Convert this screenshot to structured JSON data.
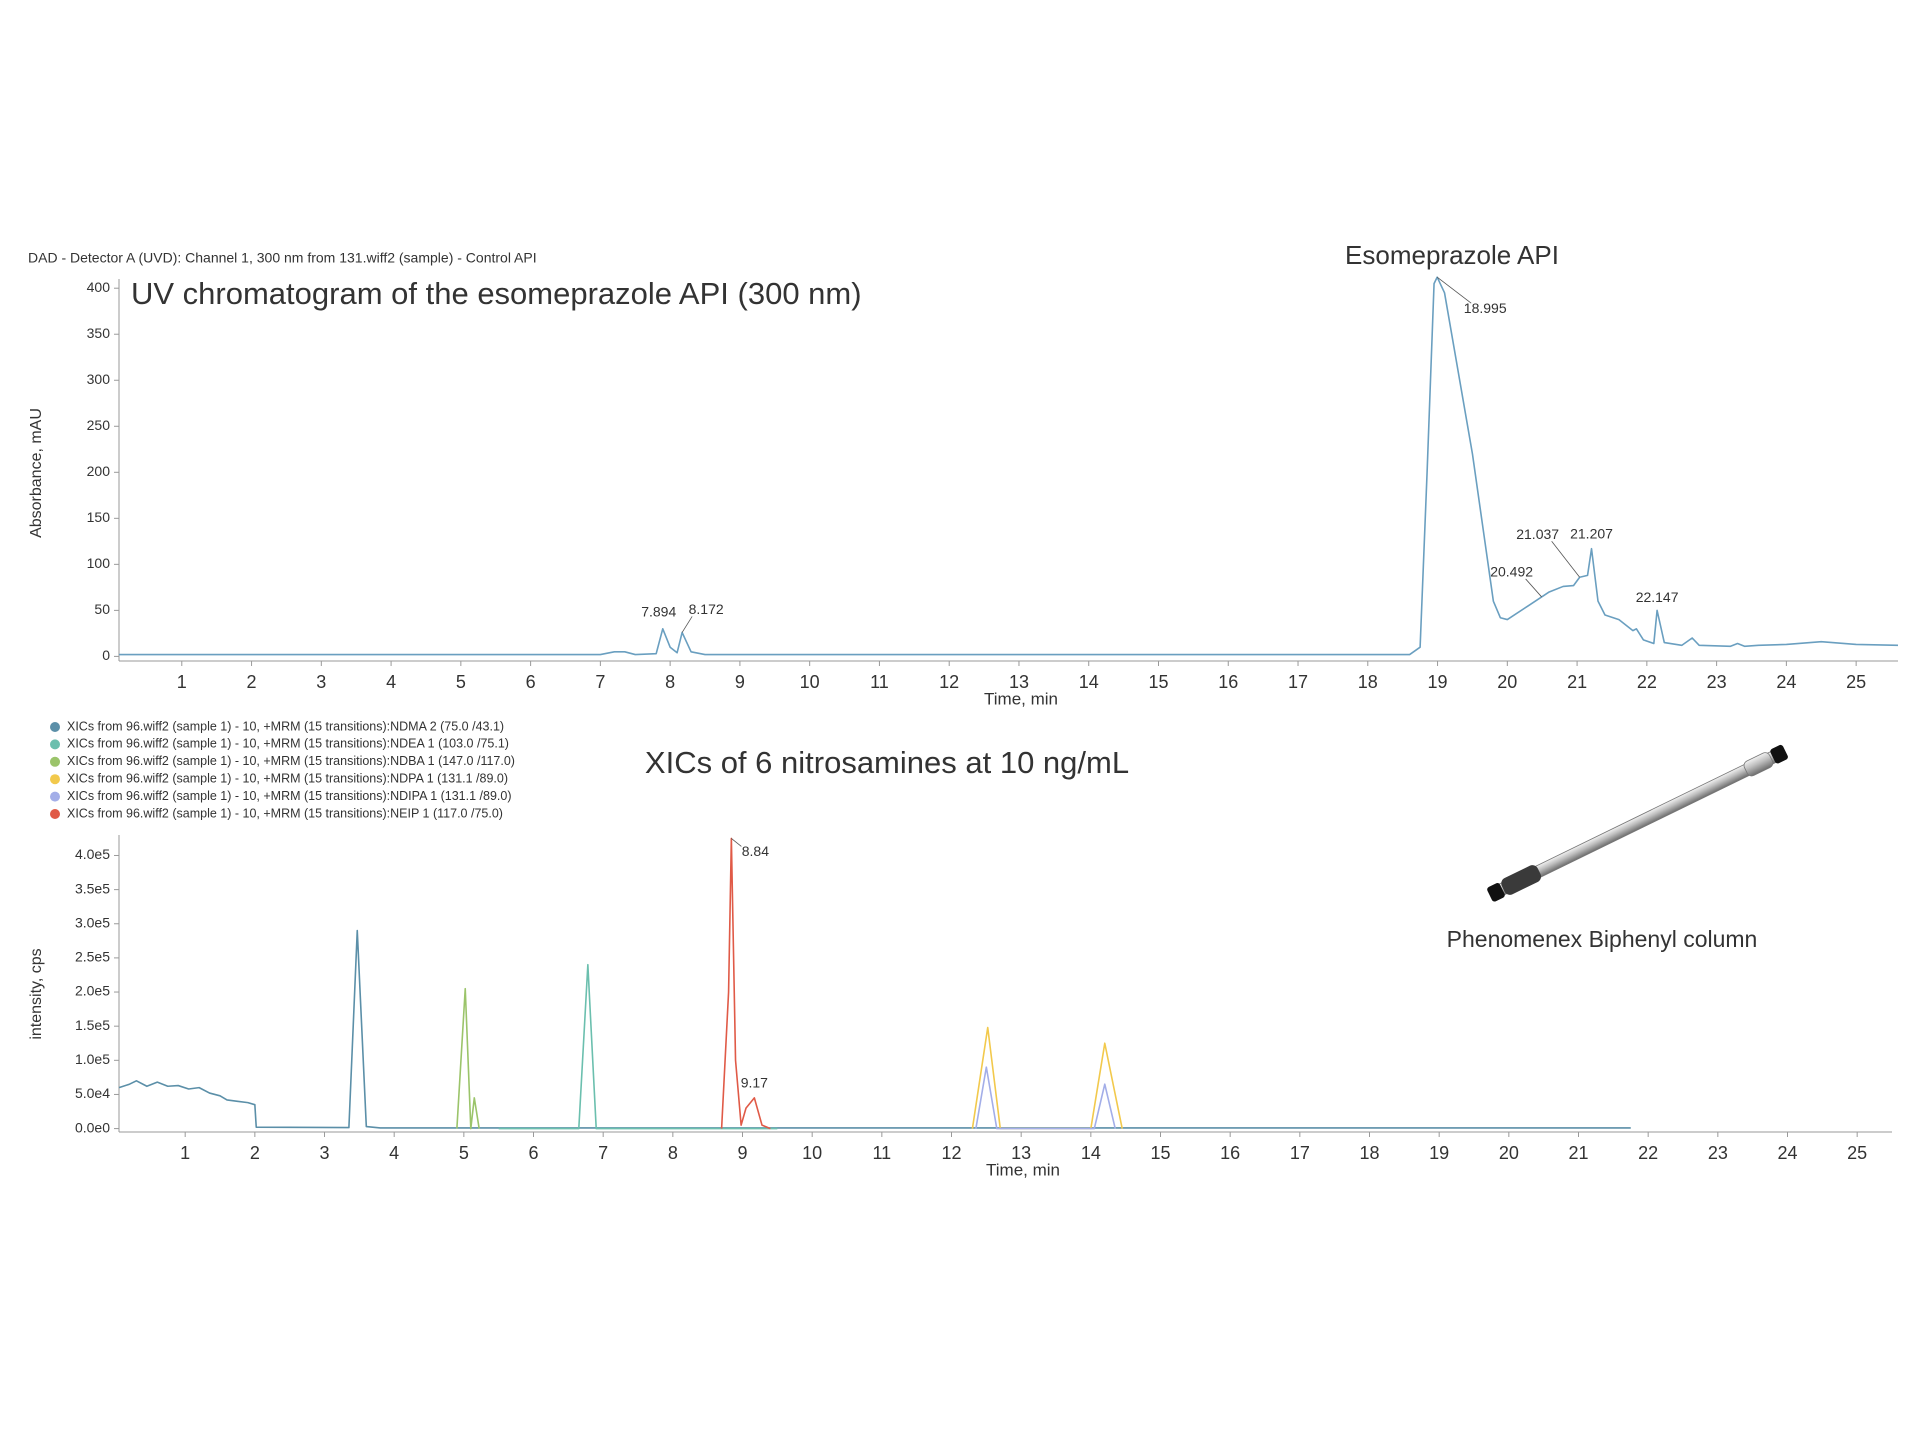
{
  "chart_data": [
    {
      "type": "line",
      "subtitle": "DAD - Detector A (UVD): Channel 1, 300 nm from 131.wiff2 (sample) - Control API",
      "title": "UV chromatogram of the esomeprazole API (300 nm)",
      "annotations": [
        "Esomeprazole API"
      ],
      "x_label": "Time, min",
      "y_label": "Absorbance, mAU",
      "color": "#6a9fc0",
      "x": [
        0.1,
        7.0,
        7.2,
        7.35,
        7.5,
        7.8,
        7.894,
        8.0,
        8.1,
        8.172,
        8.3,
        8.5,
        18.6,
        18.75,
        18.85,
        18.95,
        18.995,
        19.1,
        19.5,
        19.8,
        19.9,
        20.0,
        20.3,
        20.6,
        20.8,
        20.95,
        21.037,
        21.15,
        21.207,
        21.3,
        21.4,
        21.6,
        21.8,
        21.85,
        21.95,
        22.1,
        22.147,
        22.25,
        22.5,
        22.65,
        22.75,
        23.2,
        23.3,
        23.4,
        23.6,
        24.0,
        24.5,
        25.0,
        25.6
      ],
      "values": [
        2,
        2,
        5,
        5,
        2,
        3,
        30,
        10,
        4,
        26,
        5,
        2,
        2,
        10,
        200,
        405,
        412,
        395,
        220,
        60,
        42,
        40,
        55,
        70,
        76,
        77,
        86,
        88,
        117,
        60,
        45,
        40,
        28,
        30,
        18,
        14,
        50,
        15,
        12,
        20,
        12,
        11,
        14,
        11,
        12,
        13,
        16,
        13,
        12
      ],
      "peaks": [
        7.894,
        8.172,
        18.995,
        20.492,
        21.037,
        21.207,
        22.147
      ],
      "xlim": [
        0.1,
        25.6
      ],
      "ylim": [
        -5,
        410
      ],
      "xticks": [
        1,
        2,
        3,
        4,
        5,
        6,
        7,
        8,
        9,
        10,
        11,
        12,
        13,
        14,
        15,
        16,
        17,
        18,
        19,
        20,
        21,
        22,
        23,
        24,
        25
      ],
      "yticks": [
        0,
        50,
        100,
        150,
        200,
        250,
        300,
        350,
        400
      ]
    },
    {
      "type": "line",
      "title": "XICs of 6 nitrosamines at 10 ng/mL",
      "annotations": [
        "Phenomenex Biphenyl column"
      ],
      "x_label": "Time, min",
      "y_label": "intensity, cps",
      "legend": "top-left",
      "series": [
        {
          "name": "XICs from 96.wiff2 (sample 1) - 10, +MRM (15 transitions):NDMA 2 (75.0 /43.1)",
          "color": "#5b8fa8",
          "x": [
            0.05,
            0.2,
            0.3,
            0.45,
            0.6,
            0.75,
            0.9,
            1.05,
            1.2,
            1.35,
            1.5,
            1.6,
            1.75,
            1.9,
            2.0,
            2.02,
            3.35,
            3.47,
            3.6,
            3.8,
            21.75
          ],
          "values": [
            60000,
            65000,
            70000,
            62000,
            68000,
            62000,
            63000,
            58000,
            60000,
            52000,
            48000,
            42000,
            40000,
            38000,
            35000,
            2000,
            1500,
            290000,
            3000,
            1000,
            1000
          ]
        },
        {
          "name": "XICs from 96.wiff2 (sample 1) - 10, +MRM (15 transitions):NDEA 1 (103.0 /75.1)",
          "color": "#6bbfae",
          "x": [
            5.5,
            6.65,
            6.78,
            6.9,
            9.5
          ],
          "values": [
            0,
            0,
            240000,
            0,
            0
          ]
        },
        {
          "name": "XICs from 96.wiff2 (sample 1) - 10, +MRM (15 transitions):NDBA 1 (147.0 /117.0)",
          "color": "#9bc46a",
          "x": [
            4.9,
            5.02,
            5.1,
            5.15,
            5.22
          ],
          "values": [
            0,
            205000,
            0,
            45000,
            0
          ]
        },
        {
          "name": "XICs from 96.wiff2 (sample 1) - 10, +MRM (15 transitions):NDPA 1 (131.1 /89.0)",
          "color": "#f2c94c",
          "x": [
            12.3,
            12.52,
            12.7,
            14.0,
            14.2,
            14.45
          ],
          "values": [
            0,
            148000,
            0,
            0,
            125000,
            0
          ]
        },
        {
          "name": "XICs from 96.wiff2 (sample 1) - 10, +MRM (15 transitions):NDIPA 1 (131.1 /89.0)",
          "color": "#a3aee8",
          "x": [
            12.35,
            12.5,
            12.65,
            14.05,
            14.2,
            14.35
          ],
          "values": [
            0,
            90000,
            0,
            0,
            65000,
            0
          ]
        },
        {
          "name": "XICs from 96.wiff2 (sample 1) - 10, +MRM (15 transitions):NEIP 1 (117.0 /75.0)",
          "color": "#e05a47",
          "x": [
            8.7,
            8.8,
            8.84,
            8.9,
            8.98,
            9.05,
            9.17,
            9.28,
            9.4
          ],
          "values": [
            0,
            200000,
            425000,
            100000,
            5000,
            30000,
            45000,
            5000,
            0
          ]
        }
      ],
      "peaks": [
        8.84,
        9.17
      ],
      "xlim": [
        0.05,
        25.5
      ],
      "ylim": [
        -5000,
        430000
      ],
      "xticks": [
        1,
        2,
        3,
        4,
        5,
        6,
        7,
        8,
        9,
        10,
        11,
        12,
        13,
        14,
        15,
        16,
        17,
        18,
        19,
        20,
        21,
        22,
        23,
        24,
        25
      ],
      "yticks": [
        {
          "value": 0,
          "label": "0.0e0"
        },
        {
          "value": 50000,
          "label": "5.0e4"
        },
        {
          "value": 100000,
          "label": "1.0e5"
        },
        {
          "value": 150000,
          "label": "1.5e5"
        },
        {
          "value": 200000,
          "label": "2.0e5"
        },
        {
          "value": 250000,
          "label": "2.5e5"
        },
        {
          "value": 300000,
          "label": "3.0e5"
        },
        {
          "value": 350000,
          "label": "3.5e5"
        },
        {
          "value": 400000,
          "label": "4.0e5"
        }
      ]
    }
  ]
}
